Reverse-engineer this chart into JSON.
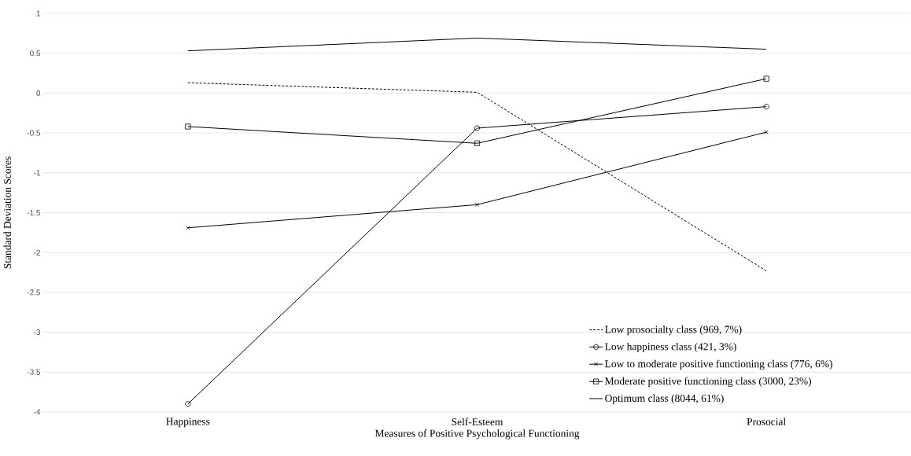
{
  "chart_data": {
    "type": "line",
    "xlabel": "Measures of Positive Psychological Functioning",
    "ylabel": "Standard Deviation Scores",
    "categories": [
      "Happiness",
      "Self-Esteem",
      "Prosocial"
    ],
    "series": [
      {
        "name": "Low prosocialty class (969, 7%)",
        "color": "#000000",
        "values": [
          0.13,
          0.01,
          -2.23
        ],
        "marker": "none",
        "line_style": "dashed"
      },
      {
        "name": "Low happiness class (421, 3%)",
        "color": "#000000",
        "values": [
          -3.9,
          -0.44,
          -0.17
        ],
        "marker": "circle",
        "line_style": "solid"
      },
      {
        "name": "Low to moderate positive functioning class (776, 6%)",
        "color": "#000000",
        "values": [
          -1.69,
          -1.4,
          -0.49
        ],
        "marker": "cross",
        "line_style": "solid"
      },
      {
        "name": "Moderate positive functioning class (3000, 23%)",
        "color": "#000000",
        "values": [
          -0.42,
          -0.63,
          0.18
        ],
        "marker": "square",
        "line_style": "solid"
      },
      {
        "name": "Optimum class (8044, 61%)",
        "color": "#000000",
        "values": [
          0.53,
          0.69,
          0.55
        ],
        "marker": "none",
        "line_style": "solid"
      }
    ],
    "ylim": [
      -4,
      1
    ],
    "yticks": [
      -4,
      -3.5,
      -3,
      -2.5,
      -2,
      -1.5,
      -1,
      -0.5,
      0,
      0.5,
      1
    ],
    "grid": "y",
    "legend": "bottom right"
  }
}
